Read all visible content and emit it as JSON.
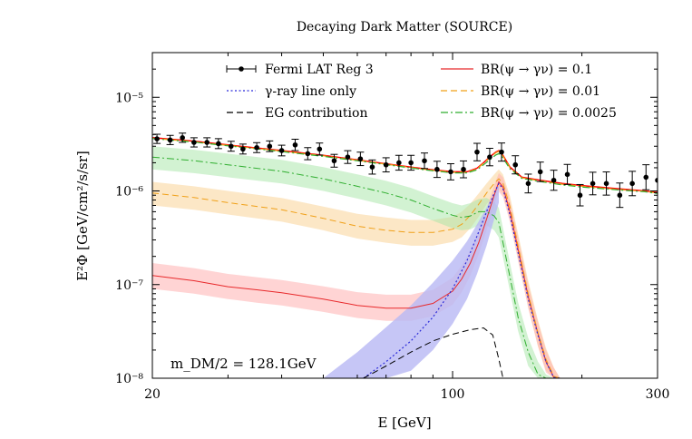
{
  "chart_data": {
    "type": "line",
    "title": "Decaying Dark Matter (SOURCE)",
    "xlabel": "E [GeV]",
    "ylabel": "E²Φ [GeV/cm²/s/sr]",
    "xscale": "log",
    "yscale": "log",
    "xlim": [
      20,
      300
    ],
    "ylim": [
      1e-08,
      3e-05
    ],
    "x_ticks": [
      20,
      100,
      300
    ],
    "x_tick_labels": [
      "20",
      "100",
      "300"
    ],
    "y_ticks": [
      1e-08,
      1e-07,
      1e-06,
      1e-05
    ],
    "y_tick_labels": [
      "10⁻⁸",
      "10⁻⁷",
      "10⁻⁶",
      "10⁻⁵"
    ],
    "annotation": "m_DM/2 = 128.1GeV",
    "legend": {
      "placement": "top",
      "entries": [
        {
          "label": "Fermi LAT Reg 3",
          "style": "errorbar",
          "color": "#000000"
        },
        {
          "label": "BR(ψ → γν) = 0.1",
          "style": "solid",
          "color": "#e8292b"
        },
        {
          "label": "γ-ray line only",
          "style": "dotted",
          "color": "#2b2bd9"
        },
        {
          "label": "BR(ψ → γν) = 0.01",
          "style": "dashed",
          "color": "#f0a018"
        },
        {
          "label": "EG contribution",
          "style": "dashed",
          "color": "#000000"
        },
        {
          "label": "BR(ψ → γν) = 0.0025",
          "style": "dashdot",
          "color": "#2fae2f"
        }
      ]
    },
    "fermi_data": {
      "name": "Fermi LAT Reg 3",
      "x": [
        20.5,
        22,
        23.5,
        25,
        26.8,
        28.5,
        30.5,
        32.5,
        35,
        37.5,
        40,
        43,
        46,
        49,
        53,
        57,
        61,
        65,
        70,
        75,
        80,
        86,
        92,
        99,
        106,
        114,
        122,
        130,
        140,
        150,
        160,
        172,
        185,
        198,
        212,
        228,
        245,
        262,
        282,
        300
      ],
      "y": [
        3.6e-06,
        3.5e-06,
        3.7e-06,
        3.3e-06,
        3.3e-06,
        3.2e-06,
        3e-06,
        2.8e-06,
        2.9e-06,
        3e-06,
        2.7e-06,
        3.1e-06,
        2.5e-06,
        2.8e-06,
        2.1e-06,
        2.3e-06,
        2.2e-06,
        1.8e-06,
        1.9e-06,
        2e-06,
        2e-06,
        2.1e-06,
        1.7e-06,
        1.6e-06,
        1.7e-06,
        2.6e-06,
        2.3e-06,
        2.6e-06,
        1.9e-06,
        1.2e-06,
        1.6e-06,
        1.3e-06,
        1.5e-06,
        9e-07,
        1.2e-06,
        1.2e-06,
        9e-07,
        1.2e-06,
        1.4e-06,
        1.3e-06
      ],
      "err": [
        0.12,
        0.12,
        0.12,
        0.12,
        0.12,
        0.13,
        0.13,
        0.13,
        0.13,
        0.14,
        0.14,
        0.15,
        0.16,
        0.16,
        0.17,
        0.17,
        0.18,
        0.19,
        0.19,
        0.2,
        0.2,
        0.21,
        0.22,
        0.22,
        0.23,
        0.24,
        0.24,
        0.25,
        0.25,
        0.26,
        0.27,
        0.28,
        0.28,
        0.3,
        0.32,
        0.33,
        0.35,
        0.35,
        0.36,
        0.36
      ]
    },
    "series": [
      {
        "name": "BR(ψ → γν) = 0.1 (total)",
        "color": "#ff0000",
        "style": "solid",
        "width": 1.5,
        "x": [
          20,
          25,
          30,
          40,
          50,
          60,
          70,
          80,
          90,
          100,
          108,
          114,
          118,
          122,
          126,
          128.1,
          131,
          136,
          145,
          160,
          180,
          200,
          240,
          280,
          300
        ],
        "y": [
          3.7e-06,
          3.4e-06,
          3.1e-06,
          2.7e-06,
          2.4e-06,
          2.15e-06,
          1.95e-06,
          1.8e-06,
          1.68e-06,
          1.6e-06,
          1.6e-06,
          1.75e-06,
          2e-06,
          2.3e-06,
          2.6e-06,
          2.7e-06,
          2.4e-06,
          1.8e-06,
          1.4e-06,
          1.3e-06,
          1.2e-06,
          1.14e-06,
          1.06e-06,
          1e-06,
          9.6e-07
        ]
      },
      {
        "name": "BR(ψ → γν) = 0.01 (total)",
        "color": "#f0a018",
        "style": "dashed",
        "width": 1.2,
        "x": [
          20,
          25,
          30,
          40,
          50,
          60,
          70,
          80,
          90,
          100,
          108,
          114,
          118,
          122,
          126,
          128.1,
          131,
          136,
          145,
          160,
          180,
          200,
          240,
          280,
          300
        ],
        "y": [
          3.65e-06,
          3.36e-06,
          3.06e-06,
          2.66e-06,
          2.37e-06,
          2.12e-06,
          1.93e-06,
          1.78e-06,
          1.66e-06,
          1.58e-06,
          1.58e-06,
          1.72e-06,
          1.97e-06,
          2.25e-06,
          2.55e-06,
          2.65e-06,
          2.35e-06,
          1.77e-06,
          1.38e-06,
          1.28e-06,
          1.18e-06,
          1.12e-06,
          1.04e-06,
          9.9e-07,
          9.5e-07
        ]
      },
      {
        "name": "BR(ψ → γν) = 0.0025 (total)",
        "color": "#2fae2f",
        "style": "dashdot",
        "width": 1.2,
        "x": [
          20,
          25,
          30,
          40,
          50,
          60,
          70,
          80,
          90,
          100,
          108,
          114,
          118,
          122,
          126,
          128.1,
          131,
          136,
          145,
          160,
          180,
          200,
          240,
          280,
          300
        ],
        "y": [
          3.62e-06,
          3.33e-06,
          3.03e-06,
          2.63e-06,
          2.34e-06,
          2.1e-06,
          1.91e-06,
          1.76e-06,
          1.64e-06,
          1.56e-06,
          1.56e-06,
          1.68e-06,
          1.9e-06,
          2.15e-06,
          2.42e-06,
          2.5e-06,
          2.25e-06,
          1.72e-06,
          1.36e-06,
          1.26e-06,
          1.16e-06,
          1.1e-06,
          1.03e-06,
          9.8e-07,
          9.4e-07
        ]
      },
      {
        "name": "DM signal BR = 0.1",
        "color": "#e8292b",
        "style": "solid",
        "width": 1.0,
        "x": [
          20,
          25,
          30,
          35,
          40,
          50,
          60,
          70,
          80,
          90,
          100,
          105,
          110,
          115,
          120,
          125,
          128.1,
          131,
          136,
          142,
          150,
          158,
          165,
          172,
          178
        ],
        "y": [
          1.25e-07,
          1.1e-07,
          9.5e-08,
          8.8e-08,
          8.2e-08,
          7e-08,
          6e-08,
          5.6e-08,
          5.6e-08,
          6.3e-08,
          8.5e-08,
          1.15e-07,
          1.7e-07,
          2.8e-07,
          5e-07,
          9e-07,
          1.25e-06,
          1.1e-06,
          6e-07,
          2.4e-07,
          7.5e-08,
          3e-08,
          1.5e-08,
          1.02e-08,
          1e-08
        ]
      },
      {
        "name": "DM signal BR = 0.01",
        "color": "#f0a018",
        "style": "dashed",
        "width": 1.0,
        "x": [
          20,
          25,
          30,
          40,
          50,
          60,
          70,
          80,
          90,
          100,
          105,
          110,
          115,
          120,
          125,
          128.1,
          131,
          136,
          142,
          150,
          158,
          165,
          172,
          178
        ],
        "y": [
          9.5e-07,
          8.5e-07,
          7.5e-07,
          6.3e-07,
          5.1e-07,
          4.2e-07,
          3.8e-07,
          3.6e-07,
          3.6e-07,
          3.9e-07,
          4.4e-07,
          5.5e-07,
          7.2e-07,
          9.5e-07,
          1.2e-06,
          1.35e-06,
          1.2e-06,
          6.8e-07,
          2.6e-07,
          8e-08,
          3.1e-08,
          1.6e-08,
          1.05e-08,
          1e-08
        ]
      },
      {
        "name": "DM signal BR = 0.0025",
        "color": "#2fae2f",
        "style": "dashdot",
        "width": 1.0,
        "x": [
          20,
          25,
          30,
          40,
          50,
          60,
          70,
          80,
          90,
          100,
          105,
          110,
          115,
          120,
          125,
          128.1,
          131,
          136,
          142,
          150,
          158,
          165,
          172,
          178
        ],
        "y": [
          2.3e-06,
          2.1e-06,
          1.9e-06,
          1.62e-06,
          1.35e-06,
          1.12e-06,
          9.5e-07,
          8e-07,
          6.5e-07,
          5.5e-07,
          5.2e-07,
          5.4e-07,
          6e-07,
          6e-07,
          5.4e-07,
          4.6e-07,
          2.8e-07,
          1.2e-07,
          4.5e-08,
          1.9e-08,
          1.1e-08,
          1e-08,
          1e-08,
          1e-08
        ]
      },
      {
        "name": "γ-ray line only",
        "color": "#2b2bd9",
        "style": "dotted",
        "width": 1.2,
        "x": [
          62,
          70,
          80,
          90,
          100,
          108,
          114,
          120,
          125,
          128.1,
          131,
          136,
          142,
          150,
          158,
          165,
          172,
          178
        ],
        "y": [
          1e-08,
          1.5e-08,
          2.5e-08,
          4.5e-08,
          9e-08,
          1.8e-07,
          3.3e-07,
          6e-07,
          9.5e-07,
          1.2e-06,
          1.05e-06,
          5.5e-07,
          2.2e-07,
          7e-08,
          2.9e-08,
          1.5e-08,
          1.02e-08,
          1e-08
        ]
      },
      {
        "name": "EG contribution",
        "color": "#000000",
        "style": "dashed",
        "width": 1.0,
        "x": [
          62,
          70,
          80,
          90,
          100,
          110,
          118,
          124,
          128.1,
          131
        ],
        "y": [
          1e-08,
          1.35e-08,
          1.9e-08,
          2.5e-08,
          2.95e-08,
          3.3e-08,
          3.45e-08,
          2.9e-08,
          1.6e-08,
          1e-08
        ]
      }
    ],
    "bands": [
      {
        "name": "BR 0.01 band",
        "color": "#f8ca80",
        "opacity": 0.45,
        "x": [
          20,
          25,
          30,
          40,
          50,
          60,
          70,
          80,
          90,
          100,
          105,
          110,
          115,
          120,
          125,
          128.1,
          131,
          136,
          142,
          150,
          158,
          165,
          172,
          178
        ],
        "upper": [
          1.25e-06,
          1.12e-06,
          1e-06,
          8.4e-07,
          6.8e-07,
          5.7e-07,
          5.2e-07,
          4.9e-07,
          4.9e-07,
          5.3e-07,
          6e-07,
          7.3e-07,
          9.4e-07,
          1.2e-06,
          1.5e-06,
          1.7e-06,
          1.5e-06,
          8.8e-07,
          3.5e-07,
          1.1e-07,
          4.2e-08,
          2.1e-08,
          1.3e-08,
          1e-08
        ],
        "lower": [
          7e-07,
          6.3e-07,
          5.6e-07,
          4.7e-07,
          3.8e-07,
          3.1e-07,
          2.8e-07,
          2.6e-07,
          2.6e-07,
          2.85e-07,
          3.2e-07,
          4e-07,
          5.3e-07,
          7.2e-07,
          9.3e-07,
          1.05e-06,
          9.2e-07,
          5.1e-07,
          1.9e-07,
          5.8e-08,
          2.2e-08,
          1.2e-08,
          1e-08,
          1e-08
        ]
      },
      {
        "name": "BR 0.0025 band",
        "color": "#a6e6a6",
        "opacity": 0.5,
        "x": [
          20,
          25,
          30,
          40,
          50,
          60,
          70,
          80,
          90,
          100,
          105,
          110,
          115,
          120,
          125,
          128.1,
          131,
          136,
          142,
          150,
          158,
          165,
          172,
          178
        ],
        "upper": [
          3e-06,
          2.75e-06,
          2.5e-06,
          2.15e-06,
          1.8e-06,
          1.5e-06,
          1.28e-06,
          1.08e-06,
          8.8e-07,
          7.4e-07,
          7e-07,
          7.4e-07,
          8.2e-07,
          8.4e-07,
          7.6e-07,
          6.6e-07,
          4e-07,
          1.7e-07,
          6.5e-08,
          2.7e-08,
          1.5e-08,
          1.1e-08,
          1e-08,
          1e-08
        ],
        "lower": [
          1.7e-06,
          1.55e-06,
          1.4e-06,
          1.2e-06,
          1e-06,
          8.3e-07,
          7e-07,
          5.9e-07,
          4.8e-07,
          4e-07,
          3.8e-07,
          3.9e-07,
          4.3e-07,
          4.3e-07,
          3.8e-07,
          3.2e-07,
          1.95e-07,
          8.5e-08,
          3.2e-08,
          1.35e-08,
          1e-08,
          1e-08,
          1e-08,
          1e-08
        ]
      },
      {
        "name": "BR 0.1 band",
        "color": "#ffb0b0",
        "opacity": 0.55,
        "x": [
          20,
          25,
          30,
          35,
          40,
          50,
          60,
          70,
          80,
          90,
          100,
          105,
          110,
          115,
          120,
          125,
          128.1,
          131,
          136,
          142,
          150,
          158,
          165,
          172,
          178
        ],
        "upper": [
          1.7e-07,
          1.5e-07,
          1.3e-07,
          1.2e-07,
          1.12e-07,
          9.6e-08,
          8.3e-08,
          7.8e-08,
          7.8e-08,
          8.8e-08,
          1.18e-07,
          1.6e-07,
          2.3e-07,
          3.7e-07,
          6.5e-07,
          1.15e-06,
          1.55e-06,
          1.4e-06,
          7.8e-07,
          3.2e-07,
          1e-07,
          4e-08,
          2e-08,
          1.3e-08,
          1e-08
        ],
        "lower": [
          9e-08,
          8e-08,
          7e-08,
          6.4e-08,
          6e-08,
          5.1e-08,
          4.4e-08,
          4.1e-08,
          4.1e-08,
          4.6e-08,
          6.1e-08,
          8.3e-08,
          1.25e-07,
          2.1e-07,
          3.8e-07,
          7e-07,
          9.8e-07,
          8.6e-07,
          4.6e-07,
          1.8e-07,
          5.6e-08,
          2.2e-08,
          1.15e-08,
          1e-08,
          1e-08
        ]
      },
      {
        "name": "γ-ray line band",
        "color": "#b8b8f4",
        "opacity": 0.8,
        "x": [
          50,
          60,
          70,
          80,
          90,
          100,
          108,
          114,
          120,
          125,
          128.1
        ],
        "upper": [
          1e-08,
          1.9e-08,
          3.5e-08,
          6e-08,
          1.05e-07,
          1.8e-07,
          2.9e-07,
          4.4e-07,
          6.6e-07,
          9.5e-07,
          1.15e-06
        ],
        "lower": [
          1e-08,
          1e-08,
          1e-08,
          1.2e-08,
          2e-08,
          3.8e-08,
          7e-08,
          1.3e-07,
          2.6e-07,
          5e-07,
          7.5e-07
        ]
      }
    ]
  }
}
